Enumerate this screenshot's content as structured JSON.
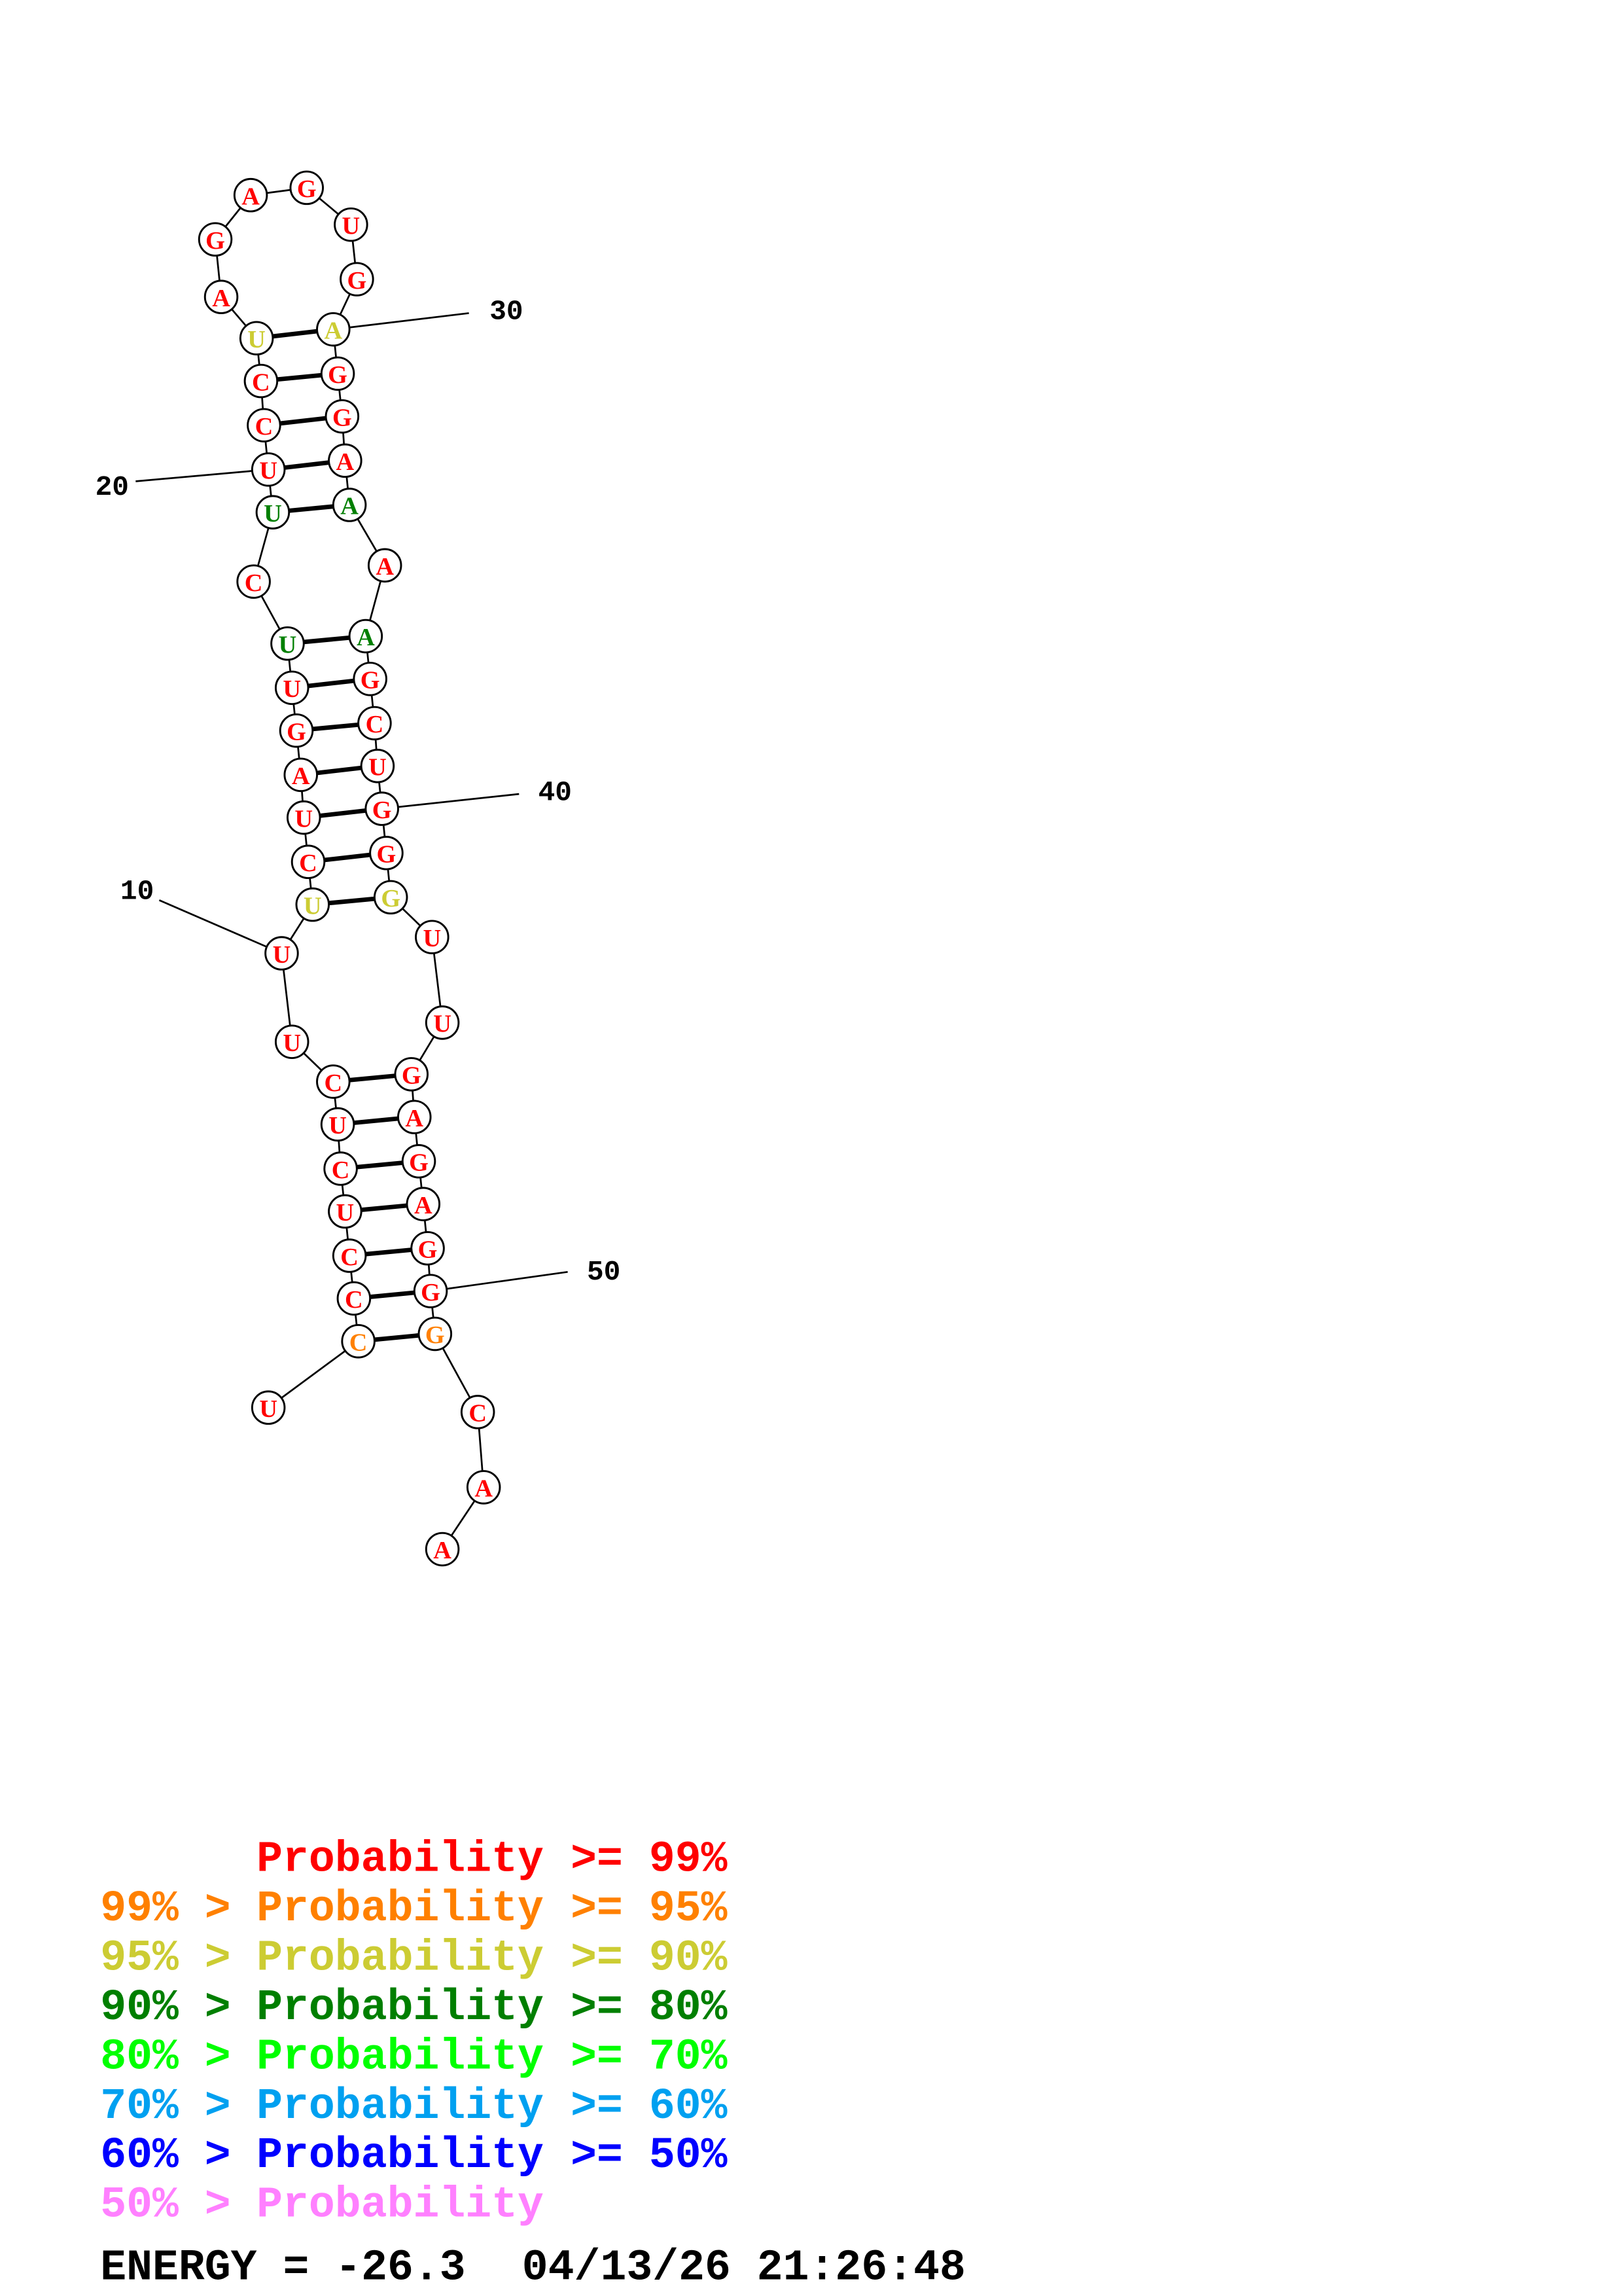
{
  "structure": {
    "sequence": [
      "U",
      "C",
      "C",
      "C",
      "U",
      "C",
      "U",
      "C",
      "U",
      "U",
      "U",
      "C",
      "U",
      "A",
      "G",
      "U",
      "U",
      "C",
      "U",
      "U",
      "C",
      "C",
      "U",
      "A",
      "G",
      "A",
      "G",
      "U",
      "G",
      "A",
      "G",
      "G",
      "A",
      "A",
      "A",
      "A",
      "G",
      "C",
      "U",
      "G",
      "G",
      "G",
      "U",
      "U",
      "G",
      "A",
      "G",
      "A",
      "G",
      "G",
      "G",
      "C",
      "A",
      "A"
    ],
    "probability_class": [
      0,
      1,
      0,
      0,
      0,
      0,
      0,
      0,
      0,
      0,
      2,
      0,
      0,
      0,
      0,
      0,
      3,
      0,
      3,
      0,
      0,
      0,
      2,
      0,
      0,
      0,
      0,
      0,
      0,
      2,
      0,
      0,
      0,
      3,
      0,
      3,
      0,
      0,
      0,
      0,
      0,
      2,
      0,
      0,
      0,
      0,
      0,
      0,
      0,
      0,
      1,
      0,
      0,
      0
    ],
    "pairs": [
      [
        2,
        51
      ],
      [
        3,
        50
      ],
      [
        4,
        49
      ],
      [
        5,
        48
      ],
      [
        6,
        47
      ],
      [
        7,
        46
      ],
      [
        8,
        45
      ],
      [
        11,
        42
      ],
      [
        12,
        41
      ],
      [
        13,
        40
      ],
      [
        14,
        39
      ],
      [
        15,
        38
      ],
      [
        16,
        37
      ],
      [
        17,
        36
      ],
      [
        19,
        34
      ],
      [
        20,
        33
      ],
      [
        21,
        32
      ],
      [
        22,
        31
      ],
      [
        23,
        30
      ]
    ],
    "tick_labels": [
      {
        "position": 10,
        "text": "10"
      },
      {
        "position": 20,
        "text": "20"
      },
      {
        "position": 30,
        "text": "30"
      },
      {
        "position": 40,
        "text": "40"
      },
      {
        "position": 50,
        "text": "50"
      }
    ]
  },
  "legend": [
    {
      "prefix": "",
      "label": "Probability",
      "suffix": ">= 99%",
      "color": "#ff0000"
    },
    {
      "prefix": "99% >",
      "label": "Probability",
      "suffix": ">= 95%",
      "color": "#ff8000"
    },
    {
      "prefix": "95% >",
      "label": "Probability",
      "suffix": ">= 90%",
      "color": "#cccc33"
    },
    {
      "prefix": "90% >",
      "label": "Probability",
      "suffix": ">= 80%",
      "color": "#007f00"
    },
    {
      "prefix": "80% >",
      "label": "Probability",
      "suffix": ">= 70%",
      "color": "#00ff00"
    },
    {
      "prefix": "70% >",
      "label": "Probability",
      "suffix": ">= 60%",
      "color": "#00a0f0"
    },
    {
      "prefix": "60% >",
      "label": "Probability",
      "suffix": ">= 50%",
      "color": "#0000ff"
    },
    {
      "prefix": "50% >",
      "label": "Probability",
      "suffix": "",
      "color": "#ff80ff"
    }
  ],
  "footer": {
    "energy": "ENERGY = -26.3",
    "timestamp": "04/13/26 21:26:48"
  }
}
